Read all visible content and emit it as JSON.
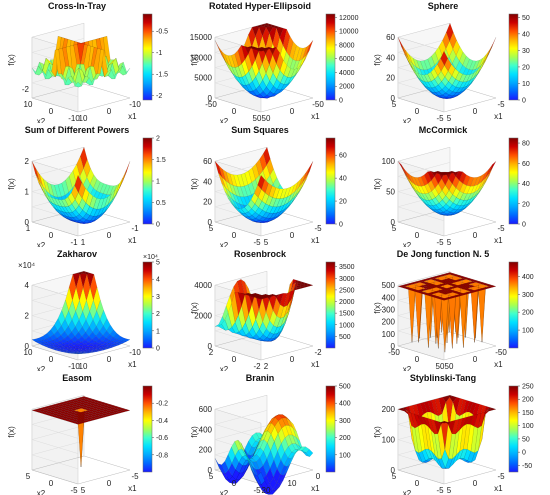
{
  "chart_data": [
    {
      "type": "surface3d",
      "title": "Cross-In-Tray",
      "zlabel": "f(x)",
      "xlabel": "x1",
      "ylabel": "x2",
      "x_ticks": [
        "10",
        "0",
        "-10"
      ],
      "y_ticks": [
        "-10",
        "0",
        "10"
      ],
      "z_ticks": [
        "-2"
      ],
      "colorbar": {
        "ticks": [
          "-0.5",
          "-1",
          "-1.5",
          "-2"
        ],
        "range": [
          -2.1,
          -0.1
        ]
      }
    },
    {
      "type": "surface3d",
      "title": "Rotated Hyper-Ellipsoid",
      "zlabel": "f(x)",
      "xlabel": "x1",
      "ylabel": "x2",
      "x_ticks": [
        "50",
        "0",
        "-50"
      ],
      "y_ticks": [
        "50",
        "0",
        "-50"
      ],
      "z_ticks": [
        "15000",
        "10000",
        "5000",
        "0"
      ],
      "colorbar": {
        "ticks": [
          "12000",
          "10000",
          "8000",
          "6000",
          "4000",
          "2000",
          "0"
        ],
        "range": [
          0,
          12500
        ]
      }
    },
    {
      "type": "surface3d",
      "title": "Sphere",
      "zlabel": "f(x)",
      "xlabel": "x1",
      "ylabel": "x2",
      "x_ticks": [
        "5",
        "0",
        "-5"
      ],
      "y_ticks": [
        "-5",
        "0",
        "5"
      ],
      "z_ticks": [
        "60",
        "40",
        "20",
        "0"
      ],
      "colorbar": {
        "ticks": [
          "50",
          "40",
          "30",
          "20",
          "10",
          "0"
        ],
        "range": [
          0,
          52
        ]
      }
    },
    {
      "type": "surface3d",
      "title": "Sum of Different Powers",
      "zlabel": "f(x)",
      "xlabel": "x1",
      "ylabel": "x2",
      "x_ticks": [
        "1",
        "0",
        "-1"
      ],
      "y_ticks": [
        "-1",
        "0",
        "1"
      ],
      "z_ticks": [
        "2",
        "1",
        "0"
      ],
      "colorbar": {
        "ticks": [
          "2",
          "1.5",
          "1",
          "0.5",
          "0"
        ],
        "range": [
          0,
          2
        ]
      }
    },
    {
      "type": "surface3d",
      "title": "Sum Squares",
      "zlabel": "f(x)",
      "xlabel": "x1",
      "ylabel": "x2",
      "x_ticks": [
        "5",
        "0",
        "-5"
      ],
      "y_ticks": [
        "-5",
        "0",
        "5"
      ],
      "z_ticks": [
        "60",
        "40",
        "20",
        "0"
      ],
      "colorbar": {
        "ticks": [
          "60",
          "40",
          "20",
          "0"
        ],
        "range": [
          0,
          75
        ]
      }
    },
    {
      "type": "surface3d",
      "title": "McCormick",
      "zlabel": "f(x)",
      "xlabel": "x1",
      "ylabel": "x2",
      "x_ticks": [
        "5",
        "0",
        "-5"
      ],
      "y_ticks": [
        "-5",
        "0",
        "5"
      ],
      "z_ticks": [
        "100",
        "50",
        "0"
      ],
      "colorbar": {
        "ticks": [
          "80",
          "60",
          "40",
          "20",
          "0"
        ],
        "range": [
          0,
          85
        ]
      }
    },
    {
      "type": "surface3d",
      "title": "Zakharov",
      "zlabel": "",
      "xlabel": "x1",
      "ylabel": "x2",
      "z_exponent": "×10⁴",
      "colorbar_exponent": "×10⁴",
      "x_ticks": [
        "10",
        "0",
        "-10"
      ],
      "y_ticks": [
        "-10",
        "0",
        "10"
      ],
      "z_ticks": [
        "4",
        "2",
        "0"
      ],
      "colorbar": {
        "ticks": [
          "5",
          "4",
          "3",
          "2",
          "1",
          "0"
        ],
        "range": [
          0,
          5
        ]
      }
    },
    {
      "type": "surface3d",
      "title": "Rosenbrock",
      "zlabel": "f(x)",
      "xlabel": "x1",
      "ylabel": "x2",
      "x_ticks": [
        "2",
        "0",
        "-2"
      ],
      "y_ticks": [
        "-2",
        "0",
        "2"
      ],
      "z_ticks": [
        "4000",
        "2000",
        "0"
      ],
      "colorbar": {
        "ticks": [
          "3500",
          "3000",
          "2500",
          "2000",
          "1500",
          "1000",
          "500"
        ],
        "range": [
          0,
          3700
        ]
      }
    },
    {
      "type": "surface3d",
      "title": "De Jong function N. 5",
      "zlabel": "f(x)",
      "xlabel": "x1",
      "ylabel": "x2",
      "x_ticks": [
        "50",
        "0",
        "-50"
      ],
      "y_ticks": [
        "50",
        "0",
        "-50"
      ],
      "z_ticks": [
        "500",
        "400",
        "300",
        "200",
        "100",
        "0"
      ],
      "colorbar": {
        "ticks": [
          "400",
          "300",
          "200",
          "100"
        ],
        "range": [
          0,
          480
        ]
      }
    },
    {
      "type": "surface3d",
      "title": "Easom",
      "zlabel": "f(x)",
      "xlabel": "x1",
      "ylabel": "x2",
      "x_ticks": [
        "5",
        "0",
        "-5"
      ],
      "y_ticks": [
        "-5",
        "0",
        "5"
      ],
      "z_ticks": [],
      "colorbar": {
        "ticks": [
          "-0.2",
          "-0.4",
          "-0.6",
          "-0.8"
        ],
        "range": [
          -1,
          0
        ]
      }
    },
    {
      "type": "surface3d",
      "title": "Branin",
      "zlabel": "f(x)",
      "xlabel": "x1",
      "ylabel": "x2",
      "x_ticks": [
        "20",
        "10",
        "0"
      ],
      "y_ticks": [
        "-5",
        "0",
        "5"
      ],
      "z_ticks": [
        "600",
        "400",
        "200",
        "0"
      ],
      "colorbar": {
        "ticks": [
          "500",
          "400",
          "300",
          "200",
          "100"
        ],
        "range": [
          0,
          500
        ]
      }
    },
    {
      "type": "surface3d",
      "title": "Styblinski-Tang",
      "zlabel": "f(x)",
      "xlabel": "x1",
      "ylabel": "x2",
      "x_ticks": [
        "5",
        "0",
        "-5"
      ],
      "y_ticks": [
        "-5",
        "0",
        "5"
      ],
      "z_ticks": [
        "200",
        "100",
        "0"
      ],
      "colorbar": {
        "ticks": [
          "250",
          "200",
          "150",
          "100",
          "50",
          "0",
          "-50"
        ],
        "range": [
          -75,
          250
        ]
      }
    }
  ],
  "colormap": [
    "#1a1aff",
    "#0066ff",
    "#00a8ff",
    "#00e0ff",
    "#40ffcc",
    "#a8ff50",
    "#ffff00",
    "#ffb000",
    "#ff5000",
    "#cc0000",
    "#800000"
  ]
}
